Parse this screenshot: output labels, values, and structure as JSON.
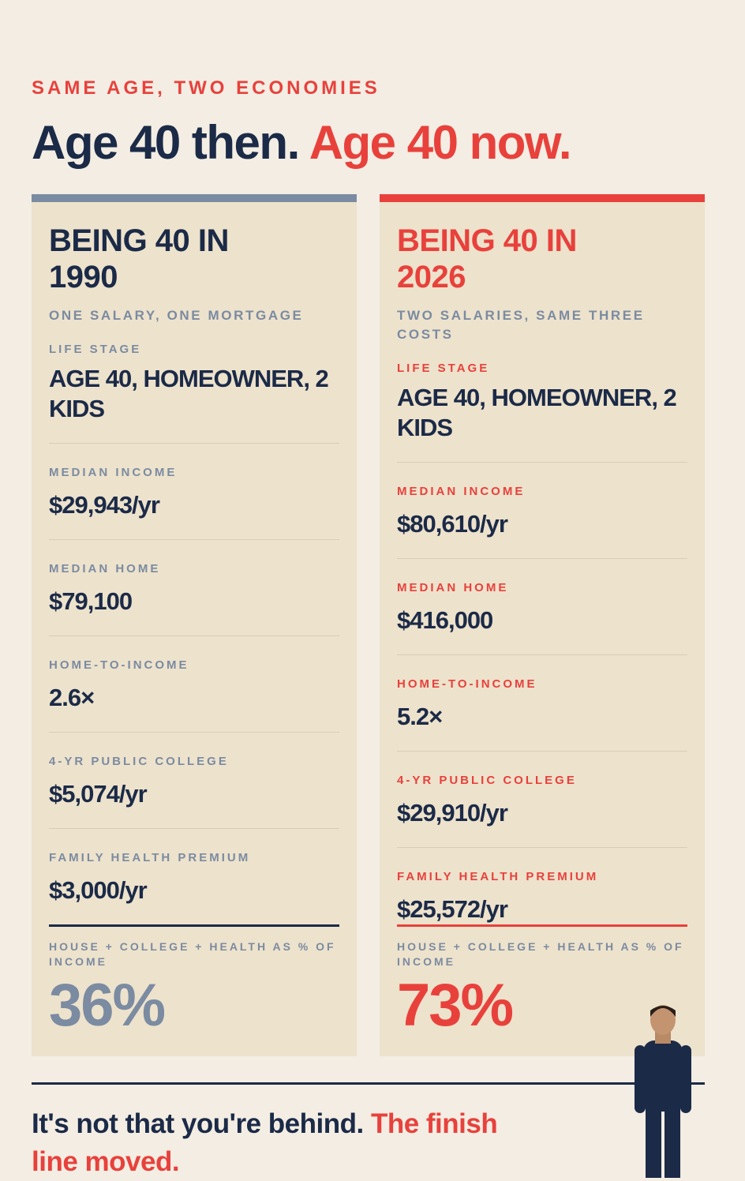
{
  "eyebrow": "SAME AGE, TWO ECONOMIES",
  "title": {
    "then": "Age 40 then.",
    "now": "Age 40 now."
  },
  "columns": [
    {
      "heading": "BEING 40 IN 1990",
      "subtitle": "ONE SALARY, ONE MORTGAGE",
      "rows": [
        {
          "label": "LIFE STAGE",
          "value": "AGE 40, HOMEOWNER, 2 KIDS"
        },
        {
          "label": "MEDIAN INCOME",
          "value": "$29,943/yr"
        },
        {
          "label": "MEDIAN HOME",
          "value": "$79,100"
        },
        {
          "label": "HOME-TO-INCOME",
          "value": "2.6×"
        },
        {
          "label": "4-YR PUBLIC COLLEGE",
          "value": "$5,074/yr"
        },
        {
          "label": "FAMILY HEALTH PREMIUM",
          "value": "$3,000/yr"
        }
      ],
      "total_label": "HOUSE + COLLEGE + HEALTH AS % OF INCOME",
      "total_value": "36%"
    },
    {
      "heading": "BEING 40 IN 2026",
      "subtitle": "TWO SALARIES, SAME THREE COSTS",
      "rows": [
        {
          "label": "LIFE STAGE",
          "value": "AGE 40, HOMEOWNER, 2 KIDS"
        },
        {
          "label": "MEDIAN INCOME",
          "value": "$80,610/yr"
        },
        {
          "label": "MEDIAN HOME",
          "value": "$416,000"
        },
        {
          "label": "HOME-TO-INCOME",
          "value": "5.2×"
        },
        {
          "label": "4-YR PUBLIC COLLEGE",
          "value": "$29,910/yr"
        },
        {
          "label": "FAMILY HEALTH PREMIUM",
          "value": "$25,572/yr"
        }
      ],
      "total_label": "HOUSE + COLLEGE + HEALTH AS % OF INCOME",
      "total_value": "73%"
    }
  ],
  "footer": {
    "lead": "It's not that you're behind.",
    "punch": "The finish line moved."
  }
}
